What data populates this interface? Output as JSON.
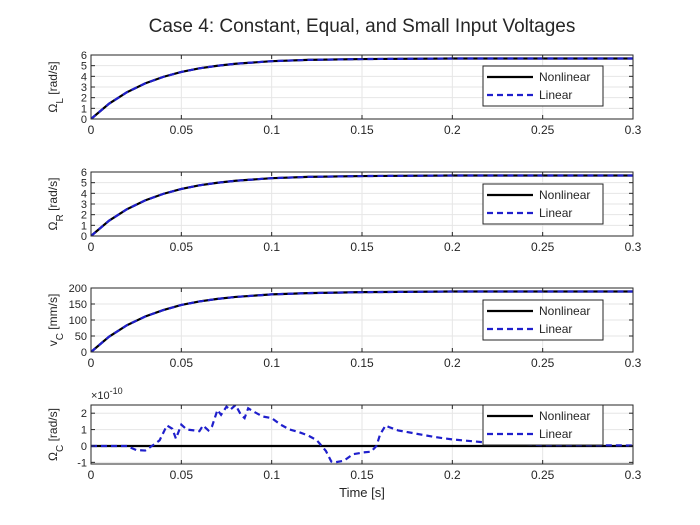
{
  "figure": {
    "title": "Case 4: Constant, Equal, and Small Input Voltages"
  },
  "colors": {
    "nonlinear": "#000000",
    "linear": "#1f1fcc",
    "grid": "#e6e6e6",
    "axis": "#262626"
  },
  "chart_data": [
    {
      "type": "line",
      "ylabel": "Ω_L [rad/s]",
      "xlim": [
        0,
        0.3
      ],
      "ylim": [
        0,
        6
      ],
      "xticks": [
        0,
        0.05,
        0.1,
        0.15,
        0.2,
        0.25,
        0.3
      ],
      "xtick_labels": [
        "0",
        "0.05",
        "0.1",
        "0.15",
        "0.2",
        "0.25",
        "0.3"
      ],
      "yticks": [
        0,
        1,
        2,
        3,
        4,
        5,
        6
      ],
      "ytick_labels": [
        "0",
        "1",
        "2",
        "3",
        "4",
        "5",
        "6"
      ],
      "grid": true,
      "legend": "right",
      "series": [
        {
          "name": "Nonlinear",
          "style": "solid",
          "x": [
            0,
            0.01,
            0.02,
            0.03,
            0.04,
            0.05,
            0.06,
            0.07,
            0.08,
            0.1,
            0.12,
            0.15,
            0.2,
            0.25,
            0.3
          ],
          "y": [
            0,
            1.44,
            2.52,
            3.34,
            3.95,
            4.41,
            4.75,
            4.99,
            5.18,
            5.42,
            5.54,
            5.62,
            5.67,
            5.67,
            5.67
          ]
        },
        {
          "name": "Linear",
          "style": "dashed",
          "x": [
            0,
            0.01,
            0.02,
            0.03,
            0.04,
            0.05,
            0.06,
            0.07,
            0.08,
            0.1,
            0.12,
            0.15,
            0.2,
            0.25,
            0.3
          ],
          "y": [
            0,
            1.44,
            2.52,
            3.34,
            3.95,
            4.41,
            4.75,
            4.99,
            5.18,
            5.42,
            5.54,
            5.62,
            5.67,
            5.67,
            5.67
          ]
        }
      ]
    },
    {
      "type": "line",
      "ylabel": "Ω_R [rad/s]",
      "xlim": [
        0,
        0.3
      ],
      "ylim": [
        0,
        6
      ],
      "xticks": [
        0,
        0.05,
        0.1,
        0.15,
        0.2,
        0.25,
        0.3
      ],
      "xtick_labels": [
        "0",
        "0.05",
        "0.1",
        "0.15",
        "0.2",
        "0.25",
        "0.3"
      ],
      "yticks": [
        0,
        1,
        2,
        3,
        4,
        5,
        6
      ],
      "ytick_labels": [
        "0",
        "1",
        "2",
        "3",
        "4",
        "5",
        "6"
      ],
      "grid": true,
      "legend": "right",
      "series": [
        {
          "name": "Nonlinear",
          "style": "solid",
          "x": [
            0,
            0.01,
            0.02,
            0.03,
            0.04,
            0.05,
            0.06,
            0.07,
            0.08,
            0.1,
            0.12,
            0.15,
            0.2,
            0.25,
            0.3
          ],
          "y": [
            0,
            1.44,
            2.52,
            3.34,
            3.95,
            4.41,
            4.75,
            4.99,
            5.18,
            5.42,
            5.54,
            5.62,
            5.67,
            5.67,
            5.67
          ]
        },
        {
          "name": "Linear",
          "style": "dashed",
          "x": [
            0,
            0.01,
            0.02,
            0.03,
            0.04,
            0.05,
            0.06,
            0.07,
            0.08,
            0.1,
            0.12,
            0.15,
            0.2,
            0.25,
            0.3
          ],
          "y": [
            0,
            1.44,
            2.52,
            3.34,
            3.95,
            4.41,
            4.75,
            4.99,
            5.18,
            5.42,
            5.54,
            5.62,
            5.67,
            5.67,
            5.67
          ]
        }
      ]
    },
    {
      "type": "line",
      "ylabel": "v_C [mm/s]",
      "xlim": [
        0,
        0.3
      ],
      "ylim": [
        0,
        200
      ],
      "xticks": [
        0,
        0.05,
        0.1,
        0.15,
        0.2,
        0.25,
        0.3
      ],
      "xtick_labels": [
        "0",
        "0.05",
        "0.1",
        "0.15",
        "0.2",
        "0.25",
        "0.3"
      ],
      "yticks": [
        0,
        50,
        100,
        150,
        200
      ],
      "ytick_labels": [
        "0",
        "50",
        "100",
        "150",
        "200"
      ],
      "grid": true,
      "legend": "right",
      "series": [
        {
          "name": "Nonlinear",
          "style": "solid",
          "x": [
            0,
            0.01,
            0.02,
            0.03,
            0.04,
            0.05,
            0.06,
            0.07,
            0.08,
            0.1,
            0.12,
            0.15,
            0.2,
            0.25,
            0.3
          ],
          "y": [
            0,
            48,
            84,
            111,
            131,
            147,
            158,
            166,
            172,
            180,
            184,
            187,
            189,
            189,
            189
          ]
        },
        {
          "name": "Linear",
          "style": "dashed",
          "x": [
            0,
            0.01,
            0.02,
            0.03,
            0.04,
            0.05,
            0.06,
            0.07,
            0.08,
            0.1,
            0.12,
            0.15,
            0.2,
            0.25,
            0.3
          ],
          "y": [
            0,
            48,
            84,
            111,
            131,
            147,
            158,
            166,
            172,
            180,
            184,
            187,
            189,
            189,
            189
          ]
        }
      ]
    },
    {
      "type": "line",
      "ylabel": "Ω_C [rad/s]",
      "exponent_label": "× 10^-10",
      "xlabel": "Time [s]",
      "xlim": [
        0,
        0.3
      ],
      "ylim": [
        -1.1,
        2.5
      ],
      "xticks": [
        0,
        0.05,
        0.1,
        0.15,
        0.2,
        0.25,
        0.3
      ],
      "xtick_labels": [
        "0",
        "0.05",
        "0.1",
        "0.15",
        "0.2",
        "0.25",
        "0.3"
      ],
      "yticks": [
        -1,
        0,
        1,
        2
      ],
      "ytick_labels": [
        "-1",
        "0",
        "1",
        "2"
      ],
      "grid": true,
      "legend": "right",
      "series": [
        {
          "name": "Nonlinear",
          "style": "solid",
          "x": [
            0,
            0.3
          ],
          "y": [
            0,
            0
          ]
        },
        {
          "name": "Linear",
          "style": "dashed",
          "x": [
            0,
            0.02,
            0.025,
            0.03,
            0.035,
            0.038,
            0.042,
            0.045,
            0.047,
            0.05,
            0.053,
            0.057,
            0.06,
            0.062,
            0.065,
            0.067,
            0.07,
            0.072,
            0.075,
            0.077,
            0.08,
            0.083,
            0.085,
            0.087,
            0.09,
            0.095,
            0.1,
            0.105,
            0.11,
            0.115,
            0.12,
            0.125,
            0.13,
            0.133,
            0.135,
            0.14,
            0.145,
            0.148,
            0.15,
            0.155,
            0.158,
            0.16,
            0.163,
            0.165,
            0.17,
            0.18,
            0.19,
            0.2,
            0.21,
            0.22,
            0.23,
            0.24,
            0.25,
            0.27,
            0.3
          ],
          "y": [
            0,
            0,
            -0.25,
            -0.28,
            0.1,
            0.35,
            1.25,
            1.05,
            0.45,
            1.3,
            1.0,
            0.95,
            0.9,
            1.25,
            0.95,
            1.2,
            2.2,
            1.9,
            2.4,
            2.2,
            2.5,
            1.9,
            1.7,
            2.3,
            2.1,
            1.8,
            1.7,
            1.3,
            1.0,
            0.85,
            0.65,
            0.35,
            -0.3,
            -0.95,
            -1.0,
            -0.9,
            -0.5,
            -0.45,
            -0.4,
            -0.35,
            0.0,
            0.7,
            1.25,
            1.15,
            0.95,
            0.75,
            0.55,
            0.4,
            0.3,
            0.2,
            0.15,
            0.1,
            0.05,
            0.05,
            0.03
          ]
        }
      ]
    }
  ]
}
